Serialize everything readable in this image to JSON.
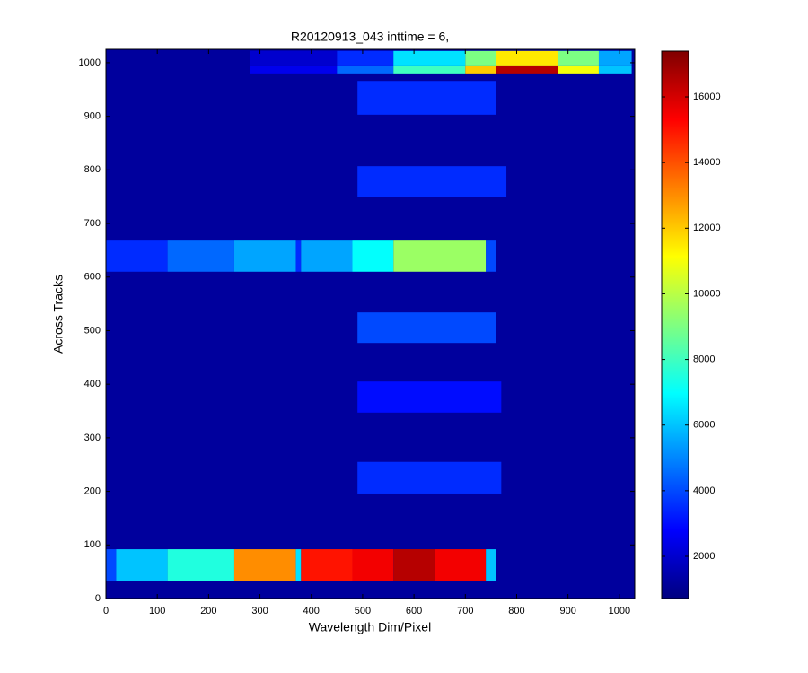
{
  "chart_data": {
    "type": "heatmap",
    "title": "R20120913_043 inttime = 6,",
    "xlabel": "Wavelength Dim/Pixel",
    "ylabel": "Across Tracks",
    "xlim": [
      0,
      1030
    ],
    "ylim": [
      0,
      1025
    ],
    "xticks": [
      0,
      100,
      200,
      300,
      400,
      500,
      600,
      700,
      800,
      900,
      1000
    ],
    "yticks": [
      0,
      100,
      200,
      300,
      400,
      500,
      600,
      700,
      800,
      900,
      1000
    ],
    "colormap": "jet",
    "clim": [
      715,
      17395
    ],
    "cticks": [
      2000,
      4000,
      6000,
      8000,
      10000,
      12000,
      14000,
      16000
    ],
    "background_value": 1200,
    "cells": [
      {
        "x": [
          0,
          20
        ],
        "y": [
          32,
          92
        ],
        "value": 4000
      },
      {
        "x": [
          20,
          120
        ],
        "y": [
          32,
          92
        ],
        "value": 6000
      },
      {
        "x": [
          120,
          250
        ],
        "y": [
          32,
          92
        ],
        "value": 7500
      },
      {
        "x": [
          250,
          370
        ],
        "y": [
          32,
          92
        ],
        "value": 13000
      },
      {
        "x": [
          370,
          380
        ],
        "y": [
          32,
          92
        ],
        "value": 6500
      },
      {
        "x": [
          380,
          480
        ],
        "y": [
          32,
          92
        ],
        "value": 15000
      },
      {
        "x": [
          480,
          560
        ],
        "y": [
          32,
          92
        ],
        "value": 15500
      },
      {
        "x": [
          560,
          640
        ],
        "y": [
          32,
          92
        ],
        "value": 16500
      },
      {
        "x": [
          640,
          740
        ],
        "y": [
          32,
          92
        ],
        "value": 15500
      },
      {
        "x": [
          740,
          760
        ],
        "y": [
          32,
          92
        ],
        "value": 6000
      },
      {
        "x": [
          490,
          770
        ],
        "y": [
          196,
          255
        ],
        "value": 3500
      },
      {
        "x": [
          490,
          770
        ],
        "y": [
          347,
          405
        ],
        "value": 3000
      },
      {
        "x": [
          490,
          760
        ],
        "y": [
          477,
          534
        ],
        "value": 4000
      },
      {
        "x": [
          0,
          120
        ],
        "y": [
          610,
          668
        ],
        "value": 3500
      },
      {
        "x": [
          120,
          250
        ],
        "y": [
          610,
          668
        ],
        "value": 4500
      },
      {
        "x": [
          250,
          370
        ],
        "y": [
          610,
          668
        ],
        "value": 5500
      },
      {
        "x": [
          370,
          380
        ],
        "y": [
          610,
          668
        ],
        "value": 3500
      },
      {
        "x": [
          380,
          480
        ],
        "y": [
          610,
          668
        ],
        "value": 5500
      },
      {
        "x": [
          480,
          560
        ],
        "y": [
          610,
          668
        ],
        "value": 7000
      },
      {
        "x": [
          560,
          740
        ],
        "y": [
          610,
          668
        ],
        "value": 9500
      },
      {
        "x": [
          740,
          760
        ],
        "y": [
          610,
          668
        ],
        "value": 4000
      },
      {
        "x": [
          490,
          780
        ],
        "y": [
          749,
          807
        ],
        "value": 3500
      },
      {
        "x": [
          490,
          760
        ],
        "y": [
          903,
          966
        ],
        "value": 3500
      },
      {
        "x": [
          280,
          450
        ],
        "y": [
          980,
          995
        ],
        "value": 2500
      },
      {
        "x": [
          450,
          560
        ],
        "y": [
          980,
          995
        ],
        "value": 4500
      },
      {
        "x": [
          560,
          700
        ],
        "y": [
          980,
          995
        ],
        "value": 8000
      },
      {
        "x": [
          700,
          760
        ],
        "y": [
          980,
          995
        ],
        "value": 12000
      },
      {
        "x": [
          760,
          880
        ],
        "y": [
          980,
          995
        ],
        "value": 16500
      },
      {
        "x": [
          880,
          960
        ],
        "y": [
          980,
          995
        ],
        "value": 11000
      },
      {
        "x": [
          960,
          1024
        ],
        "y": [
          980,
          995
        ],
        "value": 6000
      },
      {
        "x": [
          280,
          450
        ],
        "y": [
          995,
          1022
        ],
        "value": 2000
      },
      {
        "x": [
          450,
          560
        ],
        "y": [
          995,
          1022
        ],
        "value": 3500
      },
      {
        "x": [
          560,
          700
        ],
        "y": [
          995,
          1022
        ],
        "value": 6500
      },
      {
        "x": [
          700,
          760
        ],
        "y": [
          995,
          1022
        ],
        "value": 9000
      },
      {
        "x": [
          760,
          880
        ],
        "y": [
          995,
          1022
        ],
        "value": 11500
      },
      {
        "x": [
          880,
          960
        ],
        "y": [
          995,
          1022
        ],
        "value": 9000
      },
      {
        "x": [
          960,
          1024
        ],
        "y": [
          995,
          1022
        ],
        "value": 5500
      }
    ]
  }
}
